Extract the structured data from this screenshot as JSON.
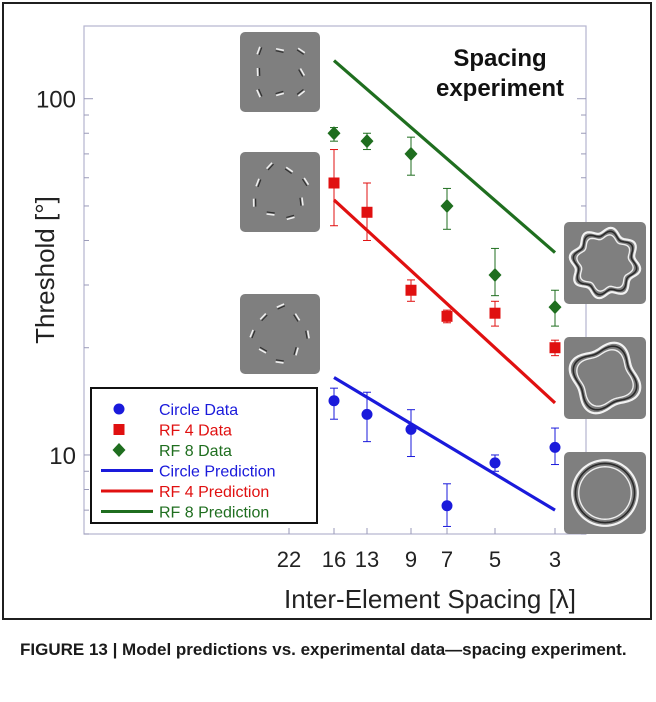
{
  "caption": {
    "text": "FIGURE 13 | Model predictions vs. experimental data—spacing experiment."
  },
  "chart_data": {
    "type": "scatter",
    "title_lines": [
      "Spacing",
      "experiment"
    ],
    "xlabel": "Inter-Element Spacing [λ]",
    "ylabel": "Threshold [°]",
    "y_scale": "log",
    "ylim": [
      6,
      160
    ],
    "x_ticks": [
      "22",
      "16",
      "13",
      "9",
      "7",
      "5",
      "3"
    ],
    "y_ticks": [
      10,
      100
    ],
    "y_tick_labels": [
      "10",
      "100"
    ],
    "legend_position": "bottom-left",
    "series": [
      {
        "name": "Circle Data",
        "kind": "data",
        "marker": "circle",
        "color": "#1a1adb",
        "x": [
          "16",
          "13",
          "9",
          "7",
          "5",
          "3"
        ],
        "y": [
          14.2,
          13.0,
          11.8,
          7.2,
          9.5,
          10.5
        ],
        "err_low": [
          12.6,
          10.9,
          9.9,
          6.3,
          9.0,
          9.4
        ],
        "err_high": [
          15.4,
          15.0,
          13.4,
          8.3,
          10.0,
          11.9
        ]
      },
      {
        "name": "RF 4 Data",
        "kind": "data",
        "marker": "square",
        "color": "#e01010",
        "x": [
          "16",
          "13",
          "9",
          "7",
          "5",
          "3"
        ],
        "y": [
          58,
          48,
          29,
          24.5,
          25,
          20
        ],
        "err_low": [
          44,
          40,
          27,
          23.5,
          23,
          19
        ],
        "err_high": [
          72,
          58,
          31,
          25.5,
          27,
          21
        ]
      },
      {
        "name": "RF 8 Data",
        "kind": "data",
        "marker": "diamond",
        "color": "#1f6e1f",
        "x": [
          "16",
          "13",
          "9",
          "7",
          "5",
          "3"
        ],
        "y": [
          80,
          76,
          70,
          50,
          32,
          26
        ],
        "err_low": [
          76,
          72,
          61,
          43,
          28,
          23
        ],
        "err_high": [
          83,
          80,
          78,
          56,
          38,
          29
        ]
      },
      {
        "name": "Circle Prediction",
        "kind": "line",
        "color": "#1a1adb",
        "x": [
          "16",
          "3"
        ],
        "y": [
          16.5,
          7.0
        ]
      },
      {
        "name": "RF 4 Prediction",
        "kind": "line",
        "color": "#e01010",
        "x": [
          "16",
          "3"
        ],
        "y": [
          52,
          14
        ]
      },
      {
        "name": "RF 8 Prediction",
        "kind": "line",
        "color": "#1f6e1f",
        "x": [
          "16",
          "3"
        ],
        "y": [
          128,
          37
        ]
      }
    ],
    "stimuli": [
      {
        "name": "rf8-stimulus-elements",
        "style": "elements"
      },
      {
        "name": "rf4-stimulus-elements",
        "style": "elements"
      },
      {
        "name": "circle-stimulus-elements",
        "style": "elements"
      },
      {
        "name": "rf8-stimulus-contour",
        "style": "rf8"
      },
      {
        "name": "rf4-stimulus-contour",
        "style": "rf4"
      },
      {
        "name": "circle-stimulus-contour",
        "style": "circle"
      }
    ]
  }
}
